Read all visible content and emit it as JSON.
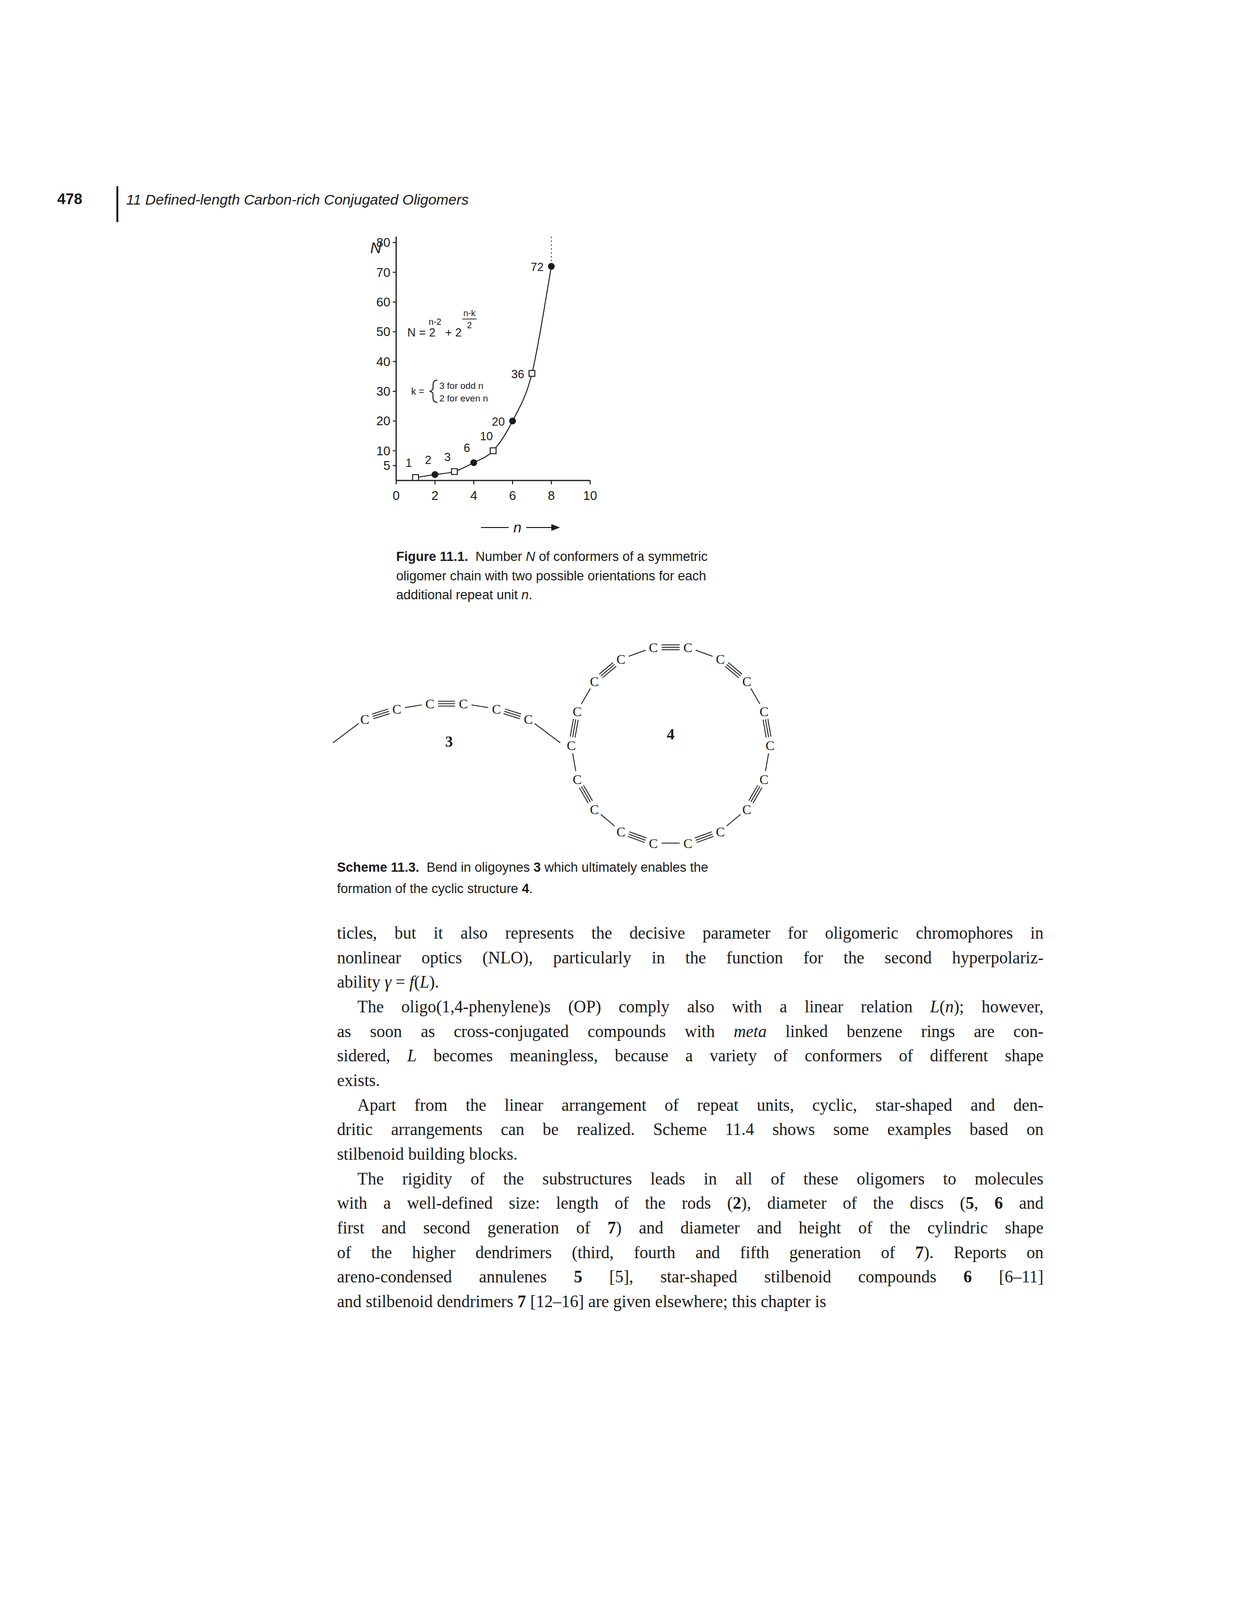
{
  "header": {
    "page_number": "478",
    "running_title": "11 Defined-length Carbon-rich Conjugated Oligomers"
  },
  "chart_data": {
    "type": "line",
    "x_label": "n",
    "y_label": "N",
    "xlim": [
      0,
      10
    ],
    "ylim": [
      0,
      82
    ],
    "xticks": [
      0,
      2,
      4,
      6,
      8,
      10
    ],
    "yticks": [
      5,
      10,
      20,
      30,
      40,
      50,
      60,
      70,
      80
    ],
    "series": [
      {
        "type": "line",
        "x": [
          1,
          2,
          3,
          4,
          5,
          6,
          7,
          8
        ],
        "values": [
          1,
          2,
          3,
          6,
          10,
          20,
          36,
          72
        ],
        "data_labels": true
      },
      {
        "type": "scatter",
        "marker": "square",
        "x": [
          1,
          3,
          5,
          7
        ],
        "values": [
          1,
          3,
          10,
          36
        ]
      },
      {
        "type": "scatter",
        "marker": "circle",
        "x": [
          2,
          4,
          6,
          8
        ],
        "values": [
          2,
          6,
          20,
          72
        ]
      }
    ],
    "annotations": {
      "formula": {
        "base": "N = 2",
        "exp1": "n-2",
        "plus": "+ 2",
        "exp2_num": "n-k",
        "exp2_den": "2"
      },
      "k_def": {
        "lhs": "k =",
        "odd": "3 for odd n",
        "even": "2 for even n"
      }
    }
  },
  "figure_caption": {
    "lines": [
      [
        {
          "text": "Figure 11.1.",
          "style": "bold"
        },
        "  Number ",
        {
          "text": "N",
          "style": "italic"
        },
        " of conformers of a symmetric"
      ],
      [
        "oligomer chain with two possible orientations for each"
      ],
      [
        "additional repeat unit ",
        {
          "text": "n",
          "style": "italic"
        },
        "."
      ]
    ]
  },
  "scheme": {
    "atom": "C",
    "structures": [
      {
        "label": "3"
      },
      {
        "label": "4"
      }
    ],
    "caption": {
      "lines": [
        [
          {
            "text": "Scheme 11.3.",
            "style": "bold"
          },
          "  Bend in oligoynes ",
          {
            "text": "3",
            "style": "bold"
          },
          " which ultimately enables the"
        ],
        [
          "formation of the cyclic structure ",
          {
            "text": "4",
            "style": "bold"
          },
          "."
        ]
      ]
    }
  },
  "body": {
    "paragraphs": [
      {
        "lines": [
          [
            "ticles, but it also represents the decisive parameter for oligomeric chromophores in"
          ],
          [
            "nonlinear optics (NLO), particularly in the function for the second hyperpolariz-"
          ],
          [
            "ability ",
            {
              "text": "γ",
              "style": "italic"
            },
            " = ",
            {
              "text": "f",
              "style": "italic"
            },
            "(",
            {
              "text": "L",
              "style": "italic"
            },
            ")."
          ]
        ]
      },
      {
        "lines": [
          [
            "The oligo(1,4-phenylene)s (OP) comply also with a linear relation ",
            {
              "text": "L",
              "style": "italic"
            },
            "(",
            {
              "text": "n",
              "style": "italic"
            },
            "); however,"
          ],
          [
            "as soon as cross-conjugated compounds with ",
            {
              "text": "meta",
              "style": "italic"
            },
            " linked benzene rings are con-"
          ],
          [
            "sidered, ",
            {
              "text": "L",
              "style": "italic"
            },
            " becomes meaningless, because a variety of conformers of different shape"
          ],
          [
            "exists."
          ]
        ]
      },
      {
        "lines": [
          [
            "Apart from the linear arrangement of repeat units, cyclic, star-shaped and den-"
          ],
          [
            "dritic arrangements can be realized. Scheme 11.4 shows some examples based on"
          ],
          [
            "stilbenoid building blocks."
          ]
        ]
      },
      {
        "lines": [
          [
            "The rigidity of the substructures leads in all of these oligomers to molecules"
          ],
          [
            "with a well-defined size: length of the rods (",
            {
              "text": "2",
              "style": "bold"
            },
            "), diameter of the discs (",
            {
              "text": "5",
              "style": "bold"
            },
            ", ",
            {
              "text": "6",
              "style": "bold"
            },
            " and"
          ],
          [
            "first and second generation of ",
            {
              "text": "7",
              "style": "bold"
            },
            ") and diameter and height of the cylindric shape"
          ],
          [
            "of the higher dendrimers (third, fourth and fifth generation of ",
            {
              "text": "7",
              "style": "bold"
            },
            "). Reports on"
          ],
          [
            "areno-condensed annulenes ",
            {
              "text": "5",
              "style": "bold"
            },
            " [5], star-shaped stilbenoid compounds ",
            {
              "text": "6",
              "style": "bold"
            },
            " [6–11]"
          ],
          [
            "and stilbenoid dendrimers ",
            {
              "text": "7",
              "style": "bold"
            },
            " [12–16] are given elsewhere; this chapter is"
          ]
        ]
      }
    ]
  }
}
